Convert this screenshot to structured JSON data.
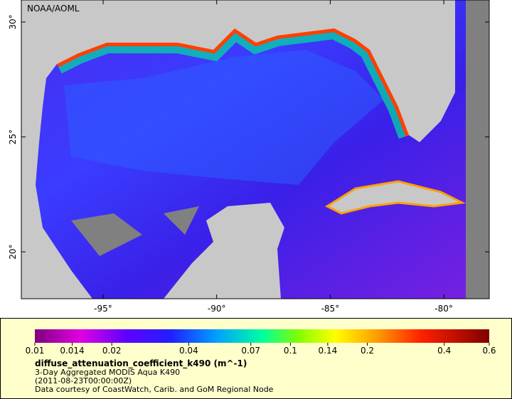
{
  "map": {
    "attribution": "NOAA/AOML",
    "lon_range": [
      -98.6,
      -78.0
    ],
    "lat_range": [
      17.96,
      30.96
    ],
    "lon_ticks": [
      {
        "value": -95,
        "label": "-95°"
      },
      {
        "value": -90,
        "label": "-90°"
      },
      {
        "value": -85,
        "label": "-85°"
      },
      {
        "value": -80,
        "label": "-80°"
      }
    ],
    "lat_ticks": [
      {
        "value": 30,
        "label": "30°"
      },
      {
        "value": 25,
        "label": "25°"
      },
      {
        "value": 20,
        "label": "20°"
      }
    ]
  },
  "legend": {
    "scale": "log",
    "range": [
      0.01,
      0.6
    ],
    "ticks": [
      0.01,
      0.014,
      0.02,
      0.04,
      0.07,
      0.1,
      0.14,
      0.2,
      0.4,
      0.6
    ],
    "title": "diffuse_attenuation_coefficient_k490 (m^-1)",
    "lines": [
      "3-Day Aggregated MODIS Aqua K490",
      "(2011-08-23T00:00:00Z)",
      "Data courtesy of CoastWatch, Carib. and GoM Regional Node"
    ]
  }
}
